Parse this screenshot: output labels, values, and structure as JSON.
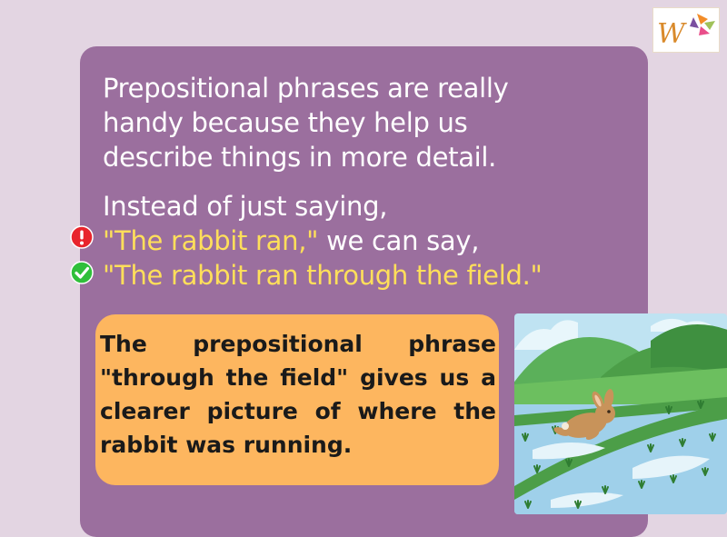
{
  "logo": {
    "letter": "W"
  },
  "intro": {
    "lines": [
      "Prepositional phrases are really",
      "handy because they help us",
      "describe things in more detail."
    ]
  },
  "example": {
    "line1": "Instead of just saying,",
    "wrong_quote": "\"The rabbit ran,\"",
    "wrong_rest": " we can say,",
    "right_quote": "\"The rabbit ran through the field.\"",
    "wrong_icon": "exclamation-icon",
    "right_icon": "checkmark-icon"
  },
  "note": {
    "text": "The prepositional phrase \"through the field\" gives us a clearer picture of where the rabbit was running."
  },
  "colors": {
    "background": "#e3d5e2",
    "card": "#9b6f9e",
    "highlight": "#ffdf5a",
    "note": "#fdb65f",
    "wrong": "#e8242c",
    "right": "#2fbf3a"
  }
}
